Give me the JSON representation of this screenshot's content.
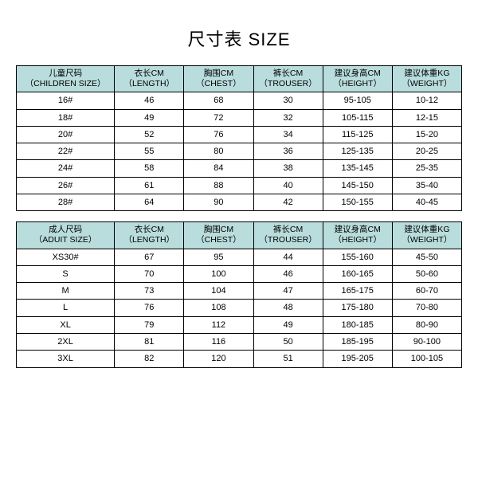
{
  "title": "尺寸表 SIZE",
  "header_bg": "#b9dcdc",
  "tables": {
    "children": {
      "columns": [
        {
          "top": "儿童尺码",
          "bot": "（CHILDREN SIZE）"
        },
        {
          "top": "衣长CM",
          "bot": "（LENGTH）"
        },
        {
          "top": "胸围CM",
          "bot": "（CHEST）"
        },
        {
          "top": "裤长CM",
          "bot": "（TROUSER）"
        },
        {
          "top": "建议身高CM",
          "bot": "（HEIGHT）"
        },
        {
          "top": "建议体重KG",
          "bot": "（WEIGHT）"
        }
      ],
      "rows": [
        [
          "16#",
          "46",
          "68",
          "30",
          "95-105",
          "10-12"
        ],
        [
          "18#",
          "49",
          "72",
          "32",
          "105-115",
          "12-15"
        ],
        [
          "20#",
          "52",
          "76",
          "34",
          "115-125",
          "15-20"
        ],
        [
          "22#",
          "55",
          "80",
          "36",
          "125-135",
          "20-25"
        ],
        [
          "24#",
          "58",
          "84",
          "38",
          "135-145",
          "25-35"
        ],
        [
          "26#",
          "61",
          "88",
          "40",
          "145-150",
          "35-40"
        ],
        [
          "28#",
          "64",
          "90",
          "42",
          "150-155",
          "40-45"
        ]
      ]
    },
    "adult": {
      "columns": [
        {
          "top": "成人尺码",
          "bot": "（ADUIT SIZE）"
        },
        {
          "top": "衣长CM",
          "bot": "（LENGTH）"
        },
        {
          "top": "胸围CM",
          "bot": "（CHEST）"
        },
        {
          "top": "裤长CM",
          "bot": "（TROUSER）"
        },
        {
          "top": "建议身高CM",
          "bot": "（HEIGHT）"
        },
        {
          "top": "建议体重KG",
          "bot": "（WEIGHT）"
        }
      ],
      "rows": [
        [
          "XS30#",
          "67",
          "95",
          "44",
          "155-160",
          "45-50"
        ],
        [
          "S",
          "70",
          "100",
          "46",
          "160-165",
          "50-60"
        ],
        [
          "M",
          "73",
          "104",
          "47",
          "165-175",
          "60-70"
        ],
        [
          "L",
          "76",
          "108",
          "48",
          "175-180",
          "70-80"
        ],
        [
          "XL",
          "79",
          "112",
          "49",
          "180-185",
          "80-90"
        ],
        [
          "2XL",
          "81",
          "116",
          "50",
          "185-195",
          "90-100"
        ],
        [
          "3XL",
          "82",
          "120",
          "51",
          "195-205",
          "100-105"
        ]
      ]
    }
  }
}
